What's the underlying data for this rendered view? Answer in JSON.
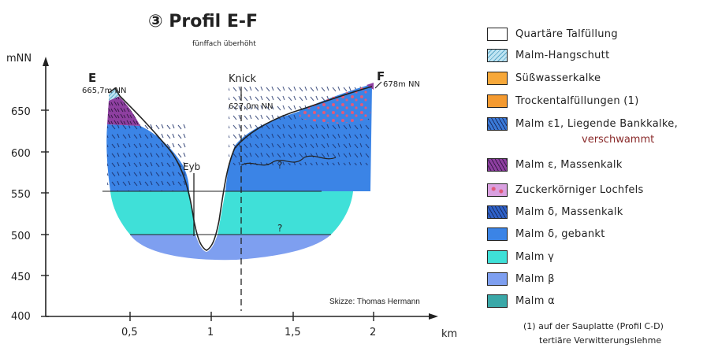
{
  "title": "③ Profil E-F",
  "subtitle": "fünffach überhöht",
  "y_axis": {
    "unit_label": "mNN",
    "ticks": [
      "650",
      "600",
      "550",
      "500",
      "450",
      "400"
    ]
  },
  "x_axis": {
    "unit_label": "km",
    "ticks": [
      "0,5",
      "1",
      "1,5",
      "2"
    ]
  },
  "labels": {
    "point_e": "E",
    "elev_e": "665,7m NN",
    "point_f": "F",
    "elev_f": "678m NN",
    "knick": "Knick",
    "elev_knick": "627,0m NN",
    "eyb": "Eyb",
    "question_upper": "?",
    "question_lower": "?",
    "credit": "Skizze: Thomas Hermann"
  },
  "legend": [
    {
      "label": "Quartäre Talfüllung",
      "color": "#ffffff"
    },
    {
      "label": "Malm-Hangschutt",
      "color": "#bfe4f2"
    },
    {
      "label": "Süßwasserkalke",
      "color": "#f7a83a"
    },
    {
      "label": "Trockentalfüllungen (1)",
      "color": "#f49a30"
    },
    {
      "label": "Malm ε1, Liegende Bankkalke,",
      "color": "#3a7ad8"
    },
    {
      "label": "Malm ε, Massenkalk",
      "color": "#8e3fa0"
    },
    {
      "label": "Zuckerkörniger Lochfels",
      "color": "#d9a0e0"
    },
    {
      "label": "Malm δ, Massenkalk",
      "color": "#2f62c8"
    },
    {
      "label": "Malm δ, gebankt",
      "color": "#3b84e6"
    },
    {
      "label": "Malm γ",
      "color": "#3fe0d8"
    },
    {
      "label": "Malm β",
      "color": "#7e9ff0"
    },
    {
      "label": "Malm α",
      "color": "#3aa8a8"
    }
  ],
  "legend_sub": "verschwammt",
  "footnote": {
    "line1": "(1) auf der Sauplatte (Profil C-D)",
    "line2": "tertiäre Verwitterungslehme"
  }
}
